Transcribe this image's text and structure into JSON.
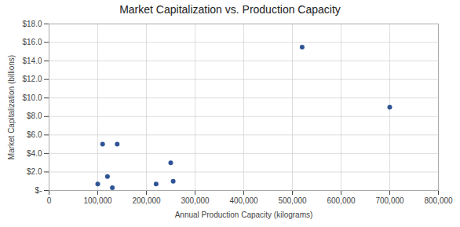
{
  "chart_data": {
    "type": "scatter",
    "title": "Market Capitalization vs. Production Capacity",
    "xlabel": "Annual Production Capacity (kilograms)",
    "ylabel": "Market Capitalization (billions)",
    "x": [
      100000,
      110000,
      120000,
      130000,
      140000,
      220000,
      250000,
      255000,
      520000,
      700000
    ],
    "values": [
      0.7,
      5.0,
      1.5,
      0.3,
      5.0,
      0.7,
      3.0,
      1.0,
      15.5,
      9.0
    ],
    "color": "#2F5496",
    "xlim": [
      0,
      800000
    ],
    "ylim": [
      0,
      18
    ],
    "xticks": [
      0,
      {
        "value": 100000,
        "label": "100,000"
      },
      {
        "value": 200000,
        "label": "200,000"
      },
      {
        "value": 300000,
        "label": "300,000"
      },
      {
        "value": 400000,
        "label": "400,000"
      },
      {
        "value": 500000,
        "label": "500,000"
      },
      {
        "value": 600000,
        "label": "600,000"
      },
      {
        "value": 700000,
        "label": "700,000"
      },
      {
        "value": 800000,
        "label": "800,000"
      }
    ],
    "yticks": [
      {
        "value": 0,
        "label": "$-"
      },
      {
        "value": 2,
        "label": "$2.0"
      },
      {
        "value": 4,
        "label": "$4.0"
      },
      {
        "value": 6,
        "label": "$6.0"
      },
      {
        "value": 8,
        "label": "$8.0"
      },
      {
        "value": 10,
        "label": "$10.0"
      },
      {
        "value": 12,
        "label": "$12.0"
      },
      {
        "value": 14,
        "label": "$14.0"
      },
      {
        "value": 16,
        "label": "$16.0"
      },
      {
        "value": 18,
        "label": "$18.0"
      }
    ],
    "grid": true
  }
}
